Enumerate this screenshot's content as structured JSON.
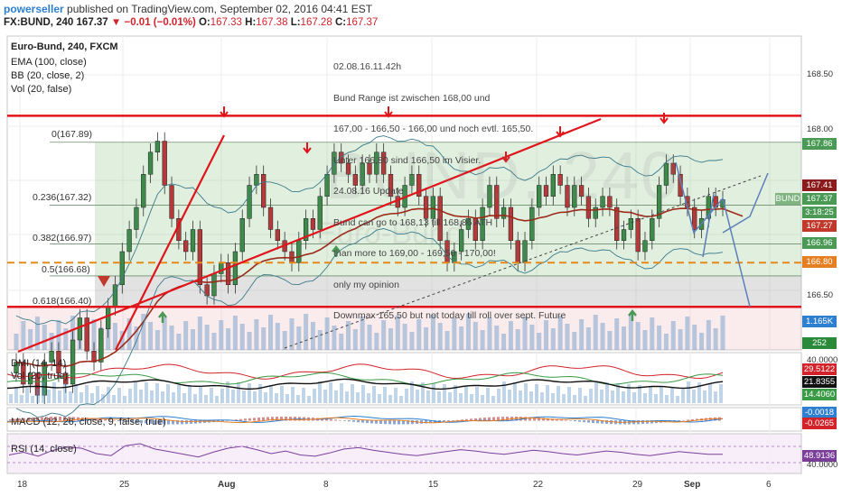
{
  "header": {
    "publisher": "powerseller",
    "published_text": " published on TradingView.com, September 02, 2016 04:41 EST",
    "symbol_line": "FX:BUND, 240",
    "last": "167.37",
    "change": "▼ −0.01 (−0.01%)",
    "o_label": "O:",
    "o_val": "167.33",
    "h_label": "H:",
    "h_val": "167.38",
    "l_label": "L:",
    "l_val": "167.28",
    "c_label": "C:",
    "c_val": "167.37"
  },
  "legend": {
    "title": "Euro-Bund, 240, FXCM",
    "ema": "EMA (100, close)",
    "bb": "BB (20, close, 2)",
    "vol": "Vol (20, false)"
  },
  "watermark": {
    "main": "BUND, 240",
    "sub": "Euro-Bund"
  },
  "annotation": [
    "02.08.16.11.42h",
    "Bund Range ist zwischen 168,00 und",
    "167,00 - 166,50 - 166,00 und noch evtl. 165,50.",
    "Unter 166,80 sind 166,50 im Visier.",
    "24.08.16 Update",
    "Bund can go to 168,13 till 168,86 ATH",
    "than more to 169,00 - 169,50 - 170,00!",
    "only my opinion",
    "Downmax 165,50 but not today till roll over sept. Future"
  ],
  "fib_labels": [
    "0(167.89)",
    "0.236(167.32)",
    "0.382(166.97)",
    "0.5(166.68)",
    "0.618(166.40)"
  ],
  "price_axis": [
    "168.50",
    "168.00",
    "166.50"
  ],
  "price_tags": [
    {
      "text": "167.86",
      "color": "#4a9a55",
      "price": 167.86
    },
    {
      "text": "167.41",
      "color": "#8b1c1c",
      "price": 167.41
    },
    {
      "text": "BUND",
      "color": "#7fb37f",
      "price": 167.35
    },
    {
      "text": "167.37",
      "color": "#4a9a55",
      "price": 167.37
    },
    {
      "text": "3:18:25",
      "color": "#4a9a55",
      "price": 167.22
    },
    {
      "text": "167.27",
      "color": "#c0392b",
      "price": 167.22
    },
    {
      "text": "166.96",
      "color": "#4a9a55",
      "price": 166.96
    },
    {
      "text": "166.80",
      "color": "#e67e22",
      "price": 166.8
    },
    {
      "text": "1.165K",
      "color": "#2f7fd0",
      "price": 166.32
    },
    {
      "text": "252",
      "color": "#2a8a3a",
      "price": 166.1
    }
  ],
  "x_ticks": [
    "18",
    "25",
    "Aug",
    "8",
    "15",
    "22",
    "29",
    "Sep",
    "6"
  ],
  "indicators": {
    "dmi": {
      "label": "DMI (14, 14)",
      "vol_label": "Vol (20, true)",
      "values": [
        "29.5122",
        "21.8355",
        "14.4060"
      ],
      "axis": "40.0000"
    },
    "macd": {
      "label": "MACD (12, 26, close, 9, false, true)",
      "values": [
        "-0.0018",
        "-0.0265"
      ]
    },
    "rsi": {
      "label": "RSI (14, close)",
      "values": [
        "48.9136"
      ],
      "axis": [
        "40.0000"
      ]
    }
  },
  "colors": {
    "bull": "#3d8a4a",
    "bear": "#b23a3a",
    "ema": "#9c2a1a",
    "bb": "#3a7a8a",
    "resistance": "#e0151b",
    "support_dash": "#e58a1a",
    "arrow_blue": "#5b7fb8"
  },
  "chart_data": {
    "type": "candlestick",
    "price_levels": {
      "resistance_top": 168.13,
      "fib_0": 167.89,
      "fib_0236": 167.32,
      "fib_0382": 166.97,
      "support_dashed": 166.8,
      "fib_05": 166.68,
      "fib_0618": 166.4,
      "support_bottom": 166.4
    },
    "closes": [
      165.9,
      165.7,
      165.8,
      165.6,
      165.9,
      166.0,
      165.8,
      165.7,
      166.1,
      166.3,
      166.0,
      165.9,
      166.2,
      166.4,
      166.6,
      166.9,
      167.1,
      167.3,
      167.6,
      167.8,
      167.9,
      167.5,
      167.2,
      167.0,
      166.9,
      167.1,
      166.6,
      166.5,
      166.7,
      166.8,
      166.6,
      166.9,
      167.2,
      167.5,
      167.6,
      167.3,
      167.1,
      167.0,
      166.9,
      166.8,
      167.0,
      167.2,
      167.1,
      167.4,
      167.6,
      167.8,
      167.7,
      167.6,
      167.5,
      167.7,
      167.6,
      167.8,
      167.6,
      167.4,
      167.3,
      167.5,
      167.6,
      167.4,
      167.2,
      167.4,
      167.0,
      166.8,
      166.9,
      167.1,
      167.2,
      167.0,
      167.3,
      167.5,
      167.2,
      167.3,
      167.0,
      166.8,
      167.0,
      167.3,
      167.5,
      167.4,
      167.6,
      167.5,
      167.3,
      167.5,
      167.4,
      167.2,
      167.3,
      167.4,
      167.3,
      167.0,
      167.1,
      167.2,
      166.9,
      167.0,
      167.2,
      167.5,
      167.7,
      167.6,
      167.4,
      167.3,
      167.1,
      167.2,
      167.4,
      167.3,
      167.37
    ],
    "rsi": [
      48,
      52,
      46,
      55,
      60,
      58,
      50,
      47,
      62,
      65,
      57,
      53,
      49,
      45,
      52,
      58,
      61,
      56,
      50,
      54,
      48,
      46,
      51,
      57,
      59,
      55,
      52,
      49,
      47,
      50,
      53,
      56,
      54,
      51,
      49,
      52,
      55,
      53,
      50,
      48,
      51,
      54,
      52,
      49,
      47,
      50,
      53,
      51,
      49,
      48.9
    ]
  }
}
